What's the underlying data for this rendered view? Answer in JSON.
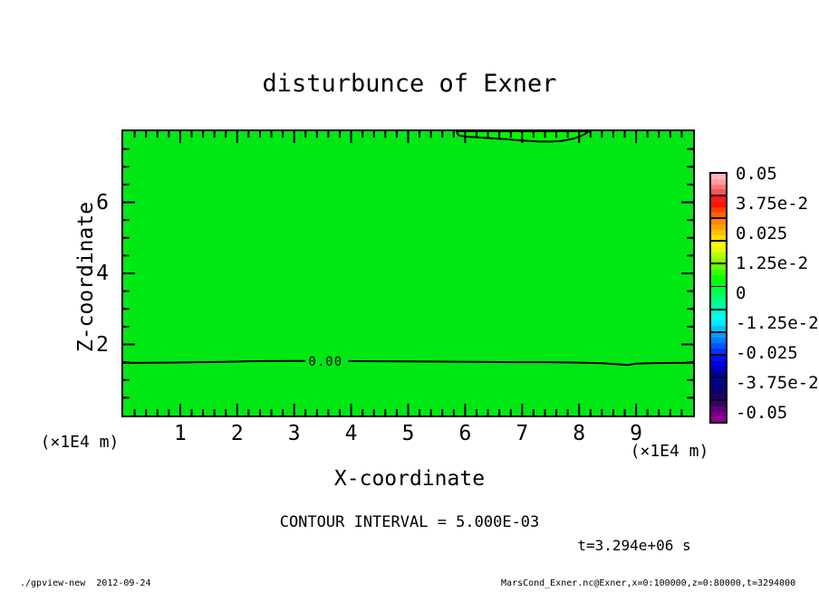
{
  "title": "disturbunce of Exner",
  "footer": {
    "left": "./gpview-new  2012-09-24",
    "right": "MarsCond_Exner.nc@Exner,x=0:100000,z=0:80000,t=3294000"
  },
  "chart_data": {
    "type": "heatmap",
    "subtype": "tone-contour-plot",
    "title": "disturbunce of Exner",
    "xlabel": "X-coordinate",
    "ylabel": "Z-coordinate",
    "x_unit_label": "(×1E4 m)",
    "y_unit_label": "(×1E4 m)",
    "xlim": [
      0,
      10
    ],
    "ylim": [
      0,
      8
    ],
    "x_major_ticks": [
      1,
      2,
      3,
      4,
      5,
      6,
      7,
      8,
      9
    ],
    "x_minor_step": 0.2,
    "y_major_ticks": [
      2,
      4,
      6
    ],
    "y_minor_step": 0.5,
    "grid": false,
    "field_color": "#00E813",
    "line_color": "#000000",
    "annotations": {
      "contour_interval": "CONTOUR INTERVAL = 5.000E-03",
      "time": "t=3.294e+06 s"
    },
    "contours": [
      {
        "label": "0.00",
        "level": 0.0,
        "label_x": 3.55,
        "label_z": 1.5,
        "segments": [
          {
            "x": [
              0,
              0.4,
              0.9,
              1.3,
              1.8,
              2.2,
              2.6,
              3.0,
              3.2
            ],
            "z": [
              1.48,
              1.485,
              1.49,
              1.5,
              1.51,
              1.525,
              1.53,
              1.535,
              1.535
            ]
          },
          {
            "x": [
              3.95,
              4.4,
              5.0,
              5.6,
              6.2,
              6.8,
              7.4,
              7.9,
              8.4,
              8.7,
              8.85,
              9.0,
              9.3,
              9.7,
              10
            ],
            "z": [
              1.53,
              1.525,
              1.52,
              1.515,
              1.51,
              1.5,
              1.5,
              1.49,
              1.47,
              1.44,
              1.42,
              1.46,
              1.475,
              1.48,
              1.48
            ]
          }
        ]
      },
      {
        "label": null,
        "level": 0.0,
        "fill": "#00FA00",
        "closed_to_top_edge": true,
        "segments": [
          {
            "x": [
              5.85,
              5.88,
              5.95,
              6.1,
              6.4,
              6.7,
              7.0,
              7.3,
              7.5,
              7.7,
              7.9,
              8.02,
              8.1,
              8.17
            ],
            "z": [
              8,
              7.89,
              7.86,
              7.84,
              7.81,
              7.78,
              7.74,
              7.71,
              7.71,
              7.73,
              7.79,
              7.86,
              7.92,
              8
            ]
          }
        ]
      }
    ],
    "colorbar": {
      "labels": [
        "0.05",
        "3.75e-2",
        "0.025",
        "1.25e-2",
        "0",
        "-1.25e-2",
        "-0.025",
        "-3.75e-2",
        "-0.05"
      ],
      "label_values": [
        0.05,
        0.0375,
        0.025,
        0.0125,
        0,
        -0.0125,
        -0.025,
        -0.0375,
        -0.05
      ],
      "blocks": [
        [
          "#FFB6B6",
          "#FF9C9C",
          "#FF7A7A",
          "#FF5454"
        ],
        [
          "#FF1A1A",
          "#FF1400",
          "#FF3E00",
          "#FF6200"
        ],
        [
          "#FF8600",
          "#FFA200",
          "#FFC000",
          "#FFDE00"
        ],
        [
          "#FFF800",
          "#E0FF00",
          "#B6FF00",
          "#8CFF00"
        ],
        [
          "#62FF00",
          "#38FF00",
          "#0EFF00",
          "#00FF18"
        ],
        [
          "#00FF3E",
          "#00FF62",
          "#00FF86",
          "#00FFAA"
        ],
        [
          "#00FFCE",
          "#00FFF2",
          "#00E8FF",
          "#00C4FF"
        ],
        [
          "#00A0FF",
          "#007CFF",
          "#0058FF",
          "#0034FF"
        ],
        [
          "#0010FF",
          "#0000E8",
          "#0000C4",
          "#0000A0"
        ],
        [
          "#000090",
          "#000080",
          "#0A0070",
          "#1E0064"
        ],
        [
          "#3C006E",
          "#5A0078",
          "#780082",
          "#8C008C"
        ]
      ]
    }
  }
}
